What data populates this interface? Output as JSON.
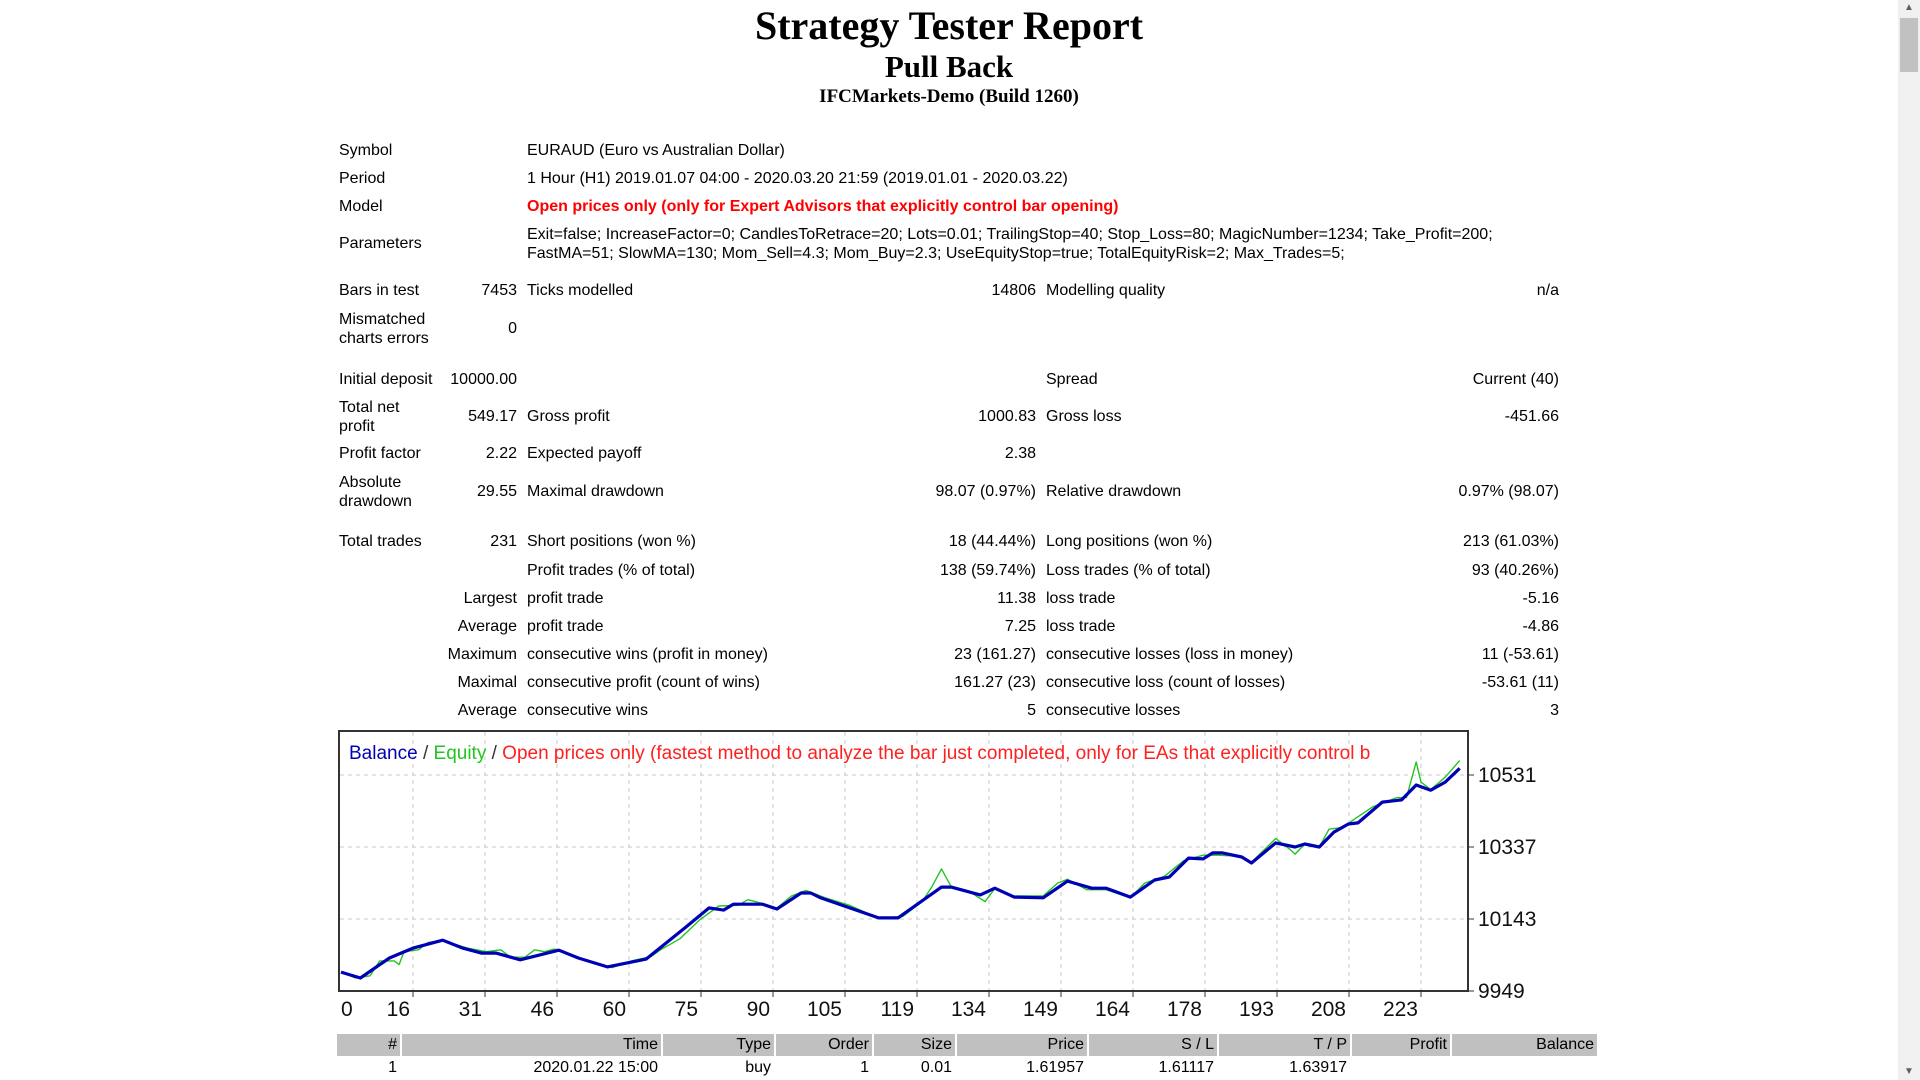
{
  "header": {
    "title": "Strategy Tester Report",
    "expert": "Pull Back",
    "server": "IFCMarkets-Demo (Build 1260)"
  },
  "info": {
    "symbol_label": "Symbol",
    "symbol": "EURAUD (Euro vs Australian Dollar)",
    "period_label": "Period",
    "period": "1 Hour (H1) 2019.01.07 04:00 - 2020.03.20 21:59 (2019.01.01 - 2020.03.22)",
    "model_label": "Model",
    "model": "Open prices only (only for Expert Advisors that explicitly control bar opening)",
    "parameters_label": "Parameters",
    "parameters_line1": "Exit=false; IncreaseFactor=0; CandlesToRetrace=20; Lots=0.01; TrailingStop=40; Stop_Loss=80; MagicNumber=1234; Take_Profit=200;",
    "parameters_line2": "FastMA=51; SlowMA=130; Mom_Sell=4.3; Mom_Buy=2.3; UseEquityStop=true; TotalEquityRisk=2; Max_Trades=5;"
  },
  "stats": {
    "bars_label": "Bars in test",
    "bars": "7453",
    "ticks_label": "Ticks modelled",
    "ticks": "14806",
    "quality_label": "Modelling quality",
    "quality": "n/a",
    "mismatch_label1": "Mismatched",
    "mismatch_label2": "charts errors",
    "mismatch": "0",
    "deposit_label": "Initial deposit",
    "deposit": "10000.00",
    "spread_label": "Spread",
    "spread": "Current (40)",
    "netprofit_label1": "Total net",
    "netprofit_label2": "profit",
    "netprofit": "549.17",
    "grossprofit_label": "Gross profit",
    "grossprofit": "1000.83",
    "grossloss_label": "Gross loss",
    "grossloss": "-451.66",
    "pf_label": "Profit factor",
    "pf": "2.22",
    "payoff_label": "Expected payoff",
    "payoff": "2.38",
    "absdd_label1": "Absolute",
    "absdd_label2": "drawdown",
    "absdd": "29.55",
    "maxdd_label": "Maximal drawdown",
    "maxdd": "98.07 (0.97%)",
    "reldd_label": "Relative drawdown",
    "reldd": "0.97% (98.07)",
    "trades_label": "Total trades",
    "trades": "231",
    "short_label": "Short positions (won %)",
    "short": "18 (44.44%)",
    "long_label": "Long positions (won %)",
    "long": "213 (61.03%)",
    "ptrades_label": "Profit trades (% of total)",
    "ptrades": "138 (59.74%)",
    "ltrades_label": "Loss trades (% of total)",
    "ltrades": "93 (40.26%)",
    "largest": "Largest",
    "largest_profit_label": "profit trade",
    "largest_profit": "11.38",
    "largest_loss_label": "loss trade",
    "largest_loss": "-5.16",
    "average": "Average",
    "avg_profit_label": "profit trade",
    "avg_profit": "7.25",
    "avg_loss_label": "loss trade",
    "avg_loss": "-4.86",
    "maximum": "Maximum",
    "max_wins_label": "consecutive wins (profit in money)",
    "max_wins": "23 (161.27)",
    "max_losses_label": "consecutive losses (loss in money)",
    "max_losses": "11 (-53.61)",
    "maximal": "Maximal",
    "maxl_profit_label": "consecutive profit (count of wins)",
    "maxl_profit": "161.27 (23)",
    "maxl_loss_label": "consecutive loss (count of losses)",
    "maxl_loss": "-53.61 (11)",
    "average2": "Average",
    "avg_wins_label": "consecutive wins",
    "avg_wins": "5",
    "avg_losses_label": "consecutive losses",
    "avg_losses": "3"
  },
  "chart_data": {
    "type": "line",
    "title_parts": [
      "Balance",
      " / ",
      "Equity",
      " / ",
      "Open prices only (fastest method to analyze the bar just completed, only for EAs that explicitly control b"
    ],
    "colors": {
      "balance": "#0000b4",
      "equity": "#22c422",
      "note": "#ff2020"
    },
    "xticks": [
      "0",
      "16",
      "31",
      "46",
      "60",
      "75",
      "90",
      "105",
      "119",
      "134",
      "149",
      "164",
      "178",
      "193",
      "208",
      "223"
    ],
    "yticks": [
      "10531",
      "10337",
      "10143",
      "9949"
    ],
    "ylim": [
      9949,
      10650
    ],
    "xlim": [
      0,
      231
    ],
    "grid": true,
    "series": [
      {
        "name": "Balance",
        "points": [
          [
            0,
            10000
          ],
          [
            4,
            9984
          ],
          [
            10,
            10038
          ],
          [
            15,
            10065
          ],
          [
            21,
            10086
          ],
          [
            25,
            10065
          ],
          [
            29,
            10051
          ],
          [
            32,
            10051
          ],
          [
            37,
            10033
          ],
          [
            45,
            10059
          ],
          [
            49,
            10038
          ],
          [
            55,
            10014
          ],
          [
            63,
            10035
          ],
          [
            71,
            10119
          ],
          [
            76,
            10173
          ],
          [
            79,
            10167
          ],
          [
            81,
            10183
          ],
          [
            87,
            10183
          ],
          [
            90,
            10170
          ],
          [
            95,
            10213
          ],
          [
            97,
            10213
          ],
          [
            99,
            10200
          ],
          [
            111,
            10146
          ],
          [
            115,
            10146
          ],
          [
            124,
            10229
          ],
          [
            126,
            10229
          ],
          [
            132,
            10208
          ],
          [
            135,
            10226
          ],
          [
            139,
            10202
          ],
          [
            145,
            10200
          ],
          [
            150,
            10245
          ],
          [
            155,
            10226
          ],
          [
            158,
            10226
          ],
          [
            163,
            10202
          ],
          [
            168,
            10248
          ],
          [
            171,
            10256
          ],
          [
            175,
            10307
          ],
          [
            178,
            10305
          ],
          [
            180,
            10321
          ],
          [
            182,
            10321
          ],
          [
            186,
            10310
          ],
          [
            188,
            10294
          ],
          [
            193,
            10348
          ],
          [
            197,
            10337
          ],
          [
            199,
            10345
          ],
          [
            202,
            10337
          ],
          [
            205,
            10377
          ],
          [
            208,
            10399
          ],
          [
            210,
            10402
          ],
          [
            215,
            10458
          ],
          [
            219,
            10464
          ],
          [
            222,
            10504
          ],
          [
            225,
            10490
          ],
          [
            228,
            10512
          ],
          [
            231,
            10549
          ]
        ]
      },
      {
        "name": "Equity",
        "points": [
          [
            0,
            10000
          ],
          [
            3,
            9984
          ],
          [
            6,
            9990
          ],
          [
            8,
            10030
          ],
          [
            11,
            10030
          ],
          [
            12,
            10020
          ],
          [
            13,
            10055
          ],
          [
            16,
            10060
          ],
          [
            18,
            10080
          ],
          [
            21,
            10085
          ],
          [
            26,
            10065
          ],
          [
            30,
            10055
          ],
          [
            33,
            10060
          ],
          [
            35,
            10040
          ],
          [
            38,
            10040
          ],
          [
            40,
            10060
          ],
          [
            42,
            10055
          ],
          [
            44,
            10062
          ],
          [
            48,
            10045
          ],
          [
            52,
            10025
          ],
          [
            56,
            10012
          ],
          [
            60,
            10030
          ],
          [
            64,
            10042
          ],
          [
            66,
            10060
          ],
          [
            70,
            10090
          ],
          [
            74,
            10140
          ],
          [
            78,
            10178
          ],
          [
            82,
            10180
          ],
          [
            84,
            10195
          ],
          [
            87,
            10185
          ],
          [
            90,
            10172
          ],
          [
            93,
            10205
          ],
          [
            96,
            10220
          ],
          [
            100,
            10200
          ],
          [
            105,
            10180
          ],
          [
            111,
            10145
          ],
          [
            116,
            10150
          ],
          [
            120,
            10190
          ],
          [
            122,
            10230
          ],
          [
            124,
            10278
          ],
          [
            126,
            10230
          ],
          [
            130,
            10215
          ],
          [
            133,
            10190
          ],
          [
            135,
            10225
          ],
          [
            139,
            10205
          ],
          [
            145,
            10205
          ],
          [
            148,
            10240
          ],
          [
            150,
            10250
          ],
          [
            154,
            10222
          ],
          [
            158,
            10222
          ],
          [
            163,
            10200
          ],
          [
            166,
            10240
          ],
          [
            170,
            10258
          ],
          [
            174,
            10300
          ],
          [
            178,
            10315
          ],
          [
            181,
            10315
          ],
          [
            186,
            10312
          ],
          [
            188,
            10296
          ],
          [
            193,
            10360
          ],
          [
            196,
            10330
          ],
          [
            197,
            10318
          ],
          [
            199,
            10345
          ],
          [
            202,
            10337
          ],
          [
            204,
            10385
          ],
          [
            207,
            10390
          ],
          [
            209,
            10410
          ],
          [
            213,
            10445
          ],
          [
            218,
            10470
          ],
          [
            220,
            10470
          ],
          [
            222,
            10566
          ],
          [
            223,
            10512
          ],
          [
            225,
            10492
          ],
          [
            228,
            10525
          ],
          [
            231,
            10570
          ]
        ]
      }
    ]
  },
  "trades_table": {
    "headers": [
      "#",
      "Time",
      "Type",
      "Order",
      "Size",
      "Price",
      "S / L",
      "T / P",
      "Profit",
      "Balance"
    ],
    "rows": [
      [
        "1",
        "2020.01.22 15:00",
        "buy",
        "1",
        "0.01",
        "1.61957",
        "1.61117",
        "1.63917",
        "",
        ""
      ]
    ]
  },
  "scrollbar": {
    "up_icon": "triangle-up",
    "down_icon": "triangle-down"
  }
}
